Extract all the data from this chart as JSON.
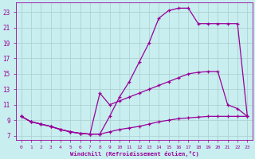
{
  "bg_color": "#c8eef0",
  "line_color": "#990099",
  "grid_color": "#aacccc",
  "xlabel": "Windchill (Refroidissement éolien,°C)",
  "xlim": [
    -0.5,
    23.5
  ],
  "ylim": [
    6.5,
    24.2
  ],
  "xticks": [
    0,
    1,
    2,
    3,
    4,
    5,
    6,
    7,
    8,
    9,
    10,
    11,
    12,
    13,
    14,
    15,
    16,
    17,
    18,
    19,
    20,
    21,
    22,
    23
  ],
  "yticks": [
    7,
    9,
    11,
    13,
    15,
    17,
    19,
    21,
    23
  ],
  "line1_x": [
    0,
    1,
    2,
    3,
    4,
    5,
    6,
    7,
    8,
    9,
    10,
    11,
    12,
    13,
    14,
    15,
    16,
    17,
    18,
    19,
    20,
    21,
    22,
    23
  ],
  "line1_y": [
    9.5,
    8.8,
    8.5,
    8.2,
    7.8,
    7.5,
    7.3,
    7.2,
    7.2,
    7.5,
    7.8,
    8.0,
    8.2,
    8.5,
    8.8,
    9.0,
    9.2,
    9.3,
    9.4,
    9.5,
    9.5,
    9.5,
    9.5,
    9.5
  ],
  "line2_x": [
    0,
    1,
    2,
    3,
    4,
    5,
    6,
    7,
    8,
    9,
    10,
    11,
    12,
    13,
    14,
    15,
    16,
    17,
    18,
    19,
    20,
    21,
    22,
    23
  ],
  "line2_y": [
    9.5,
    8.8,
    8.5,
    8.2,
    7.8,
    7.5,
    7.3,
    7.2,
    12.5,
    11.0,
    11.5,
    12.0,
    12.5,
    13.0,
    13.5,
    14.0,
    14.5,
    15.0,
    15.2,
    15.3,
    15.3,
    11.0,
    10.5,
    9.5
  ],
  "line3_x": [
    0,
    1,
    2,
    3,
    4,
    5,
    6,
    7,
    8,
    9,
    10,
    11,
    12,
    13,
    14,
    15,
    16,
    17,
    18,
    19,
    20,
    21,
    22,
    23
  ],
  "line3_y": [
    9.5,
    8.8,
    8.5,
    8.2,
    7.8,
    7.5,
    7.3,
    7.2,
    7.2,
    9.5,
    12.0,
    14.0,
    16.5,
    19.0,
    22.2,
    23.2,
    23.5,
    23.5,
    21.5,
    21.5,
    21.5,
    21.5,
    21.5,
    9.5
  ]
}
